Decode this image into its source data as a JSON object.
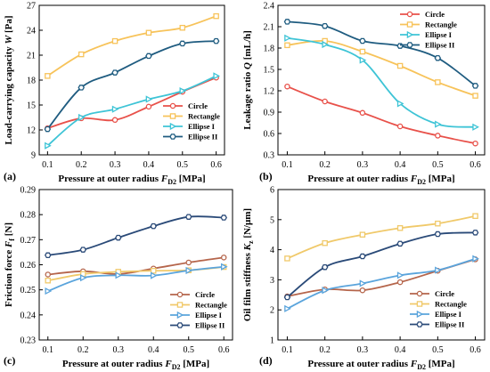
{
  "chart_data": [
    {
      "type": "line",
      "panel_label": "(a)",
      "x": [
        0.1,
        0.2,
        0.3,
        0.4,
        0.5,
        0.6
      ],
      "xlabel": "Pressure at outer radius F_D2 [MPa]",
      "ylabel": "Load-carrying capacity W [Pa]",
      "ylim": [
        9,
        27
      ],
      "yticks": [
        "9",
        "12",
        "15",
        "18",
        "21",
        "24",
        "27"
      ],
      "xticks": [
        "0.1",
        "0.2",
        "0.3",
        "0.4",
        "0.5",
        "0.6"
      ],
      "legend_position": "bottom-right",
      "series": [
        {
          "name": "Circle",
          "color": "#e8514a",
          "marker": "circle",
          "values": [
            12.2,
            13.4,
            13.2,
            14.8,
            16.6,
            18.3
          ]
        },
        {
          "name": "Rectangle",
          "color": "#f7c35a",
          "marker": "square",
          "values": [
            18.5,
            21.1,
            22.7,
            23.7,
            24.3,
            25.7
          ]
        },
        {
          "name": "Ellipse I",
          "color": "#3ec4d6",
          "marker": "triangle-right",
          "values": [
            10.1,
            13.5,
            14.5,
            15.7,
            16.7,
            18.5
          ]
        },
        {
          "name": "Ellipse II",
          "color": "#1f5c80",
          "marker": "hexagon",
          "values": [
            12.1,
            17.1,
            18.9,
            20.9,
            22.4,
            22.7
          ]
        }
      ]
    },
    {
      "type": "line",
      "panel_label": "(b)",
      "x": [
        0.1,
        0.2,
        0.3,
        0.4,
        0.5,
        0.6
      ],
      "xlabel": "Pressure at outer radius F_D2 [MPa]",
      "ylabel": "Leakage ratio Q [mL/h]",
      "ylim": [
        0.3,
        2.4
      ],
      "yticks": [
        "0.3",
        "0.6",
        "0.9",
        "1.2",
        "1.5",
        "1.8",
        "2.1",
        "2.4"
      ],
      "xticks": [
        "0.1",
        "0.2",
        "0.3",
        "0.4",
        "0.5",
        "0.6"
      ],
      "legend_position": "top-right",
      "series": [
        {
          "name": "Circle",
          "color": "#e8514a",
          "marker": "circle",
          "values": [
            1.26,
            1.05,
            0.89,
            0.7,
            0.57,
            0.46
          ]
        },
        {
          "name": "Rectangle",
          "color": "#f7c35a",
          "marker": "square",
          "values": [
            1.84,
            1.9,
            1.75,
            1.55,
            1.32,
            1.13
          ]
        },
        {
          "name": "Ellipse I",
          "color": "#3ec4d6",
          "marker": "triangle-right",
          "values": [
            1.94,
            1.85,
            1.63,
            1.02,
            0.73,
            0.69
          ]
        },
        {
          "name": "Ellipse II",
          "color": "#1f5c80",
          "marker": "hexagon",
          "values": [
            2.17,
            2.11,
            1.9,
            1.83,
            1.66,
            1.27
          ]
        }
      ]
    },
    {
      "type": "line",
      "panel_label": "(c)",
      "x": [
        0.1,
        0.2,
        0.3,
        0.4,
        0.5,
        0.6
      ],
      "xlabel": "Pressure at outer radius F_D2 [MPa]",
      "ylabel": "Friction force F_f [N]",
      "ylim": [
        0.23,
        0.29
      ],
      "yticks": [
        "0.23",
        "0.24",
        "0.25",
        "0.26",
        "0.27",
        "0.28",
        "0.29"
      ],
      "xticks": [
        "0.1",
        "0.2",
        "0.3",
        "0.4",
        "0.5",
        "0.6"
      ],
      "legend_position": "bottom-right",
      "series": [
        {
          "name": "Circle",
          "color": "#b5654b",
          "marker": "circle",
          "values": [
            0.2561,
            0.2574,
            0.2563,
            0.2585,
            0.2609,
            0.2629
          ]
        },
        {
          "name": "Rectangle",
          "color": "#f0c96a",
          "marker": "square",
          "values": [
            0.2537,
            0.2563,
            0.2572,
            0.2576,
            0.2578,
            0.2591
          ]
        },
        {
          "name": "Ellipse I",
          "color": "#5aa4dc",
          "marker": "triangle-right",
          "values": [
            0.2495,
            0.2548,
            0.2558,
            0.2557,
            0.2577,
            0.2592
          ]
        },
        {
          "name": "Ellipse II",
          "color": "#2a4a78",
          "marker": "hexagon",
          "values": [
            0.2638,
            0.266,
            0.2708,
            0.2754,
            0.2791,
            0.2788
          ]
        }
      ]
    },
    {
      "type": "line",
      "panel_label": "(d)",
      "x": [
        0.1,
        0.2,
        0.3,
        0.4,
        0.5,
        0.6
      ],
      "xlabel": "Pressure at outer radius F_D2 [MPa]",
      "ylabel": "Oil film stiffness K_z [N/μm]",
      "ylim": [
        1,
        6
      ],
      "yticks": [
        "1",
        "2",
        "3",
        "4",
        "5",
        "6"
      ],
      "xticks": [
        "0.1",
        "0.2",
        "0.3",
        "0.4",
        "0.5",
        "0.6"
      ],
      "legend_position": "bottom-right",
      "series": [
        {
          "name": "Circle",
          "color": "#b5654b",
          "marker": "circle",
          "values": [
            2.45,
            2.68,
            2.65,
            2.92,
            3.3,
            3.68
          ]
        },
        {
          "name": "Rectangle",
          "color": "#f0c96a",
          "marker": "square",
          "values": [
            3.71,
            4.22,
            4.5,
            4.72,
            4.87,
            5.12
          ]
        },
        {
          "name": "Ellipse I",
          "color": "#5aa4dc",
          "marker": "triangle-right",
          "values": [
            2.04,
            2.65,
            2.88,
            3.15,
            3.32,
            3.7
          ]
        },
        {
          "name": "Ellipse II",
          "color": "#2a4a78",
          "marker": "hexagon",
          "values": [
            2.42,
            3.42,
            3.78,
            4.2,
            4.52,
            4.57
          ]
        }
      ]
    }
  ]
}
